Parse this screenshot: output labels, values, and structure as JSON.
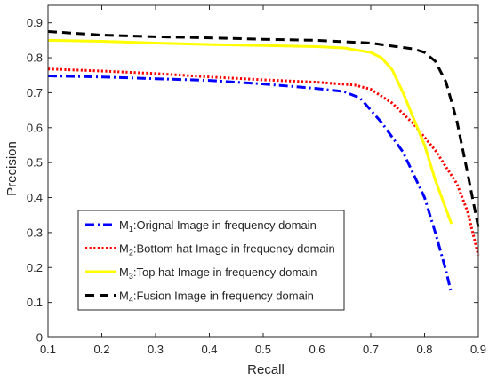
{
  "chart_data": {
    "type": "line",
    "title": "",
    "xlabel": "Recall",
    "ylabel": "Precision",
    "xlim": [
      0.1,
      0.9
    ],
    "ylim": [
      0,
      0.95
    ],
    "xticks": [
      "0.1",
      "0.2",
      "0.3",
      "0.4",
      "0.5",
      "0.6",
      "0.7",
      "0.8",
      "0.9"
    ],
    "yticks": [
      "0",
      "0.1",
      "0.2",
      "0.3",
      "0.4",
      "0.5",
      "0.6",
      "0.7",
      "0.8",
      "0.9"
    ],
    "grid": false,
    "legend_position": "bottom-left",
    "series": [
      {
        "name": "M1:Orignal Image in frequency domain",
        "legend_main": "M",
        "legend_sub": "1",
        "legend_text": ":Orignal Image in frequency domain",
        "color": "#0000ff",
        "style": "dash-dot",
        "x": [
          0.1,
          0.2,
          0.3,
          0.4,
          0.5,
          0.6,
          0.65,
          0.68,
          0.72,
          0.76,
          0.8,
          0.82,
          0.84,
          0.85
        ],
        "y": [
          0.748,
          0.745,
          0.74,
          0.735,
          0.725,
          0.712,
          0.703,
          0.685,
          0.615,
          0.53,
          0.4,
          0.3,
          0.19,
          0.125
        ]
      },
      {
        "name": "M2:Bottom hat Image in frequency domain",
        "legend_main": "M",
        "legend_sub": "2",
        "legend_text": ":Bottom hat Image in frequency domain",
        "color": "#ff0000",
        "style": "dotted",
        "x": [
          0.1,
          0.2,
          0.3,
          0.4,
          0.5,
          0.6,
          0.67,
          0.7,
          0.74,
          0.78,
          0.82,
          0.86,
          0.88,
          0.9
        ],
        "y": [
          0.768,
          0.762,
          0.755,
          0.745,
          0.737,
          0.73,
          0.722,
          0.71,
          0.67,
          0.61,
          0.535,
          0.44,
          0.36,
          0.235
        ]
      },
      {
        "name": "M3:Top hat Image in frequency domain",
        "legend_main": "M",
        "legend_sub": "3",
        "legend_text": ":Top hat Image in frequency domain",
        "color": "#ffff00",
        "style": "solid",
        "x": [
          0.1,
          0.2,
          0.3,
          0.4,
          0.5,
          0.6,
          0.65,
          0.7,
          0.72,
          0.74,
          0.76,
          0.78,
          0.8,
          0.82,
          0.85
        ],
        "y": [
          0.85,
          0.847,
          0.842,
          0.838,
          0.835,
          0.832,
          0.828,
          0.815,
          0.8,
          0.765,
          0.7,
          0.625,
          0.55,
          0.45,
          0.325
        ]
      },
      {
        "name": "M4:Fusion Image in frequency domain",
        "legend_main": "M",
        "legend_sub": "4",
        "legend_text": ":Fusion Image in frequency domain",
        "color": "#000000",
        "style": "dashed",
        "x": [
          0.1,
          0.2,
          0.3,
          0.4,
          0.5,
          0.6,
          0.7,
          0.78,
          0.8,
          0.82,
          0.84,
          0.86,
          0.88,
          0.9
        ],
        "y": [
          0.875,
          0.865,
          0.86,
          0.857,
          0.853,
          0.85,
          0.842,
          0.825,
          0.815,
          0.79,
          0.73,
          0.62,
          0.47,
          0.315
        ]
      }
    ]
  }
}
